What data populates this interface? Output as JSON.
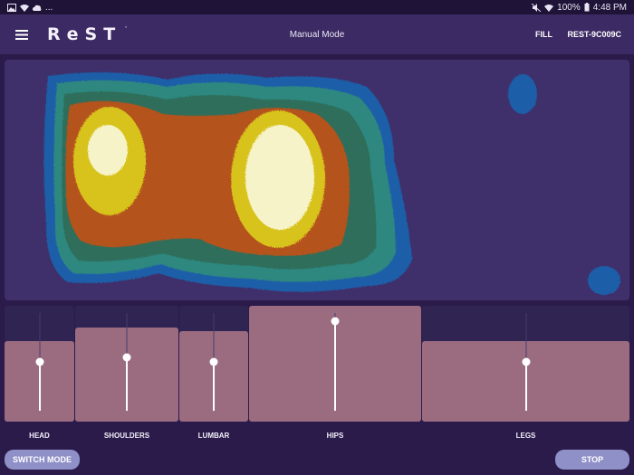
{
  "status_bar": {
    "left_icons": [
      "image-icon",
      "wifi-icon",
      "cloud-icon"
    ],
    "left_ellipsis": "...",
    "battery": "100%",
    "time": "4:48 PM",
    "right_icons": [
      "mute-icon",
      "wifi-icon",
      "battery-icon"
    ]
  },
  "app_bar": {
    "logo": "ReST",
    "logo_mark": "·",
    "title": "Manual Mode",
    "fill_label": "FILL",
    "device_id": "REST-9C009C"
  },
  "pressure_map": {
    "colors": {
      "background": "#3f2f6b",
      "low": "#1f5fa8",
      "teal": "#2d8880",
      "green": "#2f6e5a",
      "orange": "#b5521c",
      "yellow": "#d8c21c",
      "peak": "#f6f3c8"
    }
  },
  "zones": [
    {
      "label": "HEAD",
      "level": 0.5
    },
    {
      "label": "SHOULDERS",
      "level": 0.55
    },
    {
      "label": "LUMBAR",
      "level": 0.5
    },
    {
      "label": "HIPS",
      "level": 0.92
    },
    {
      "label": "LEGS",
      "level": 0.5
    }
  ],
  "buttons": {
    "switch_mode": "SWITCH MODE",
    "stop": "STOP"
  },
  "theme": {
    "zone_fill": "#9b6c80",
    "zone_track": "#2f2452",
    "button": "#8f90c7"
  }
}
